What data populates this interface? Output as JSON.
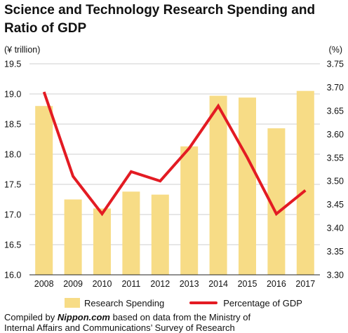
{
  "title_line1": "Science and Technology Research Spending and",
  "title_line2": "Ratio of GDP",
  "left_unit": "(¥ trillion)",
  "right_unit": "(%)",
  "legend": {
    "bar_label": "Research Spending",
    "line_label": "Percentage of GDP"
  },
  "source": {
    "prefix": "Compiled by ",
    "brand": "Nippon.com",
    "suffix": " based on data from the Ministry of",
    "line2": "Internal Affairs and Communications’ Survey of Research"
  },
  "colors": {
    "bar": "#f7dc86",
    "line": "#e31b23",
    "grid": "#cfcfcf"
  },
  "chart_data": {
    "type": "bar",
    "categories": [
      "2008",
      "2009",
      "2010",
      "2011",
      "2012",
      "2013",
      "2014",
      "2015",
      "2016",
      "2017"
    ],
    "series": [
      {
        "name": "Research Spending",
        "type": "bar",
        "axis": "left",
        "values": [
          18.8,
          17.25,
          17.1,
          17.38,
          17.33,
          18.13,
          18.97,
          18.94,
          18.43,
          19.05
        ]
      },
      {
        "name": "Percentage of GDP",
        "type": "line",
        "axis": "right",
        "values": [
          3.69,
          3.51,
          3.43,
          3.52,
          3.5,
          3.57,
          3.66,
          3.55,
          3.43,
          3.48
        ]
      }
    ],
    "y_left": {
      "lim": [
        16.0,
        19.5
      ],
      "ticks": [
        "16.0",
        "16.5",
        "17.0",
        "17.5",
        "18.0",
        "18.5",
        "19.0",
        "19.5"
      ]
    },
    "y_right": {
      "lim": [
        3.3,
        3.75
      ],
      "ticks": [
        "3.30",
        "3.35",
        "3.40",
        "3.45",
        "3.50",
        "3.55",
        "3.60",
        "3.65",
        "3.70",
        "3.75"
      ]
    },
    "grid": true,
    "legend_position": "bottom"
  }
}
